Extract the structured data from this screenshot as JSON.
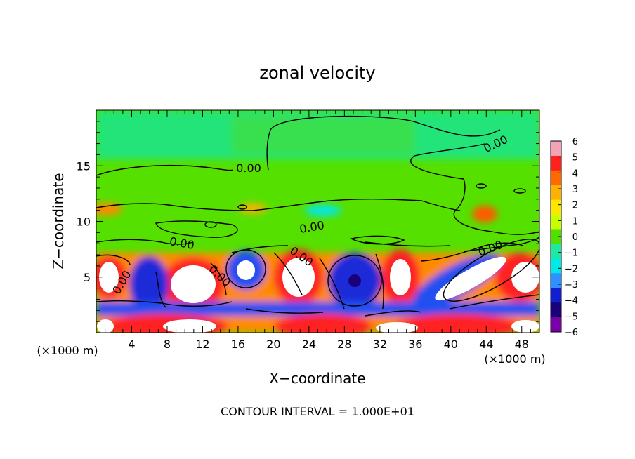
{
  "chart_data": {
    "type": "heatmap",
    "title": "zonal velocity",
    "xlabel": "X−coordinate",
    "ylabel": "Z−coordinate",
    "x_unit_left": "(×1000 m)",
    "x_unit_right": "(×1000 m)",
    "xlim": [
      0,
      50
    ],
    "ylim": [
      0,
      20
    ],
    "x_ticks": [
      4,
      8,
      12,
      16,
      20,
      24,
      28,
      32,
      36,
      40,
      44,
      48
    ],
    "y_ticks": [
      5,
      10,
      15
    ],
    "colorbar": {
      "ticks": [
        "6",
        "5",
        "4",
        "3",
        "2",
        "1",
        "0",
        "−1",
        "−2",
        "−3",
        "−4",
        "−5",
        "−6"
      ],
      "values": [
        6,
        5,
        4,
        3,
        2,
        1,
        0,
        -1,
        -2,
        -3,
        -4,
        -5,
        -6
      ],
      "colors": [
        "#f4a3b6",
        "#ff2020",
        "#ff6a00",
        "#ffb000",
        "#ffe600",
        "#c8ff00",
        "#50e000",
        "#20e8a0",
        "#00e8e8",
        "#3090ff",
        "#1020d0",
        "#1a007a",
        "#7a00a8"
      ]
    },
    "contour_label": "0.00",
    "footer": "CONTOUR INTERVAL = 1.000E+01"
  }
}
